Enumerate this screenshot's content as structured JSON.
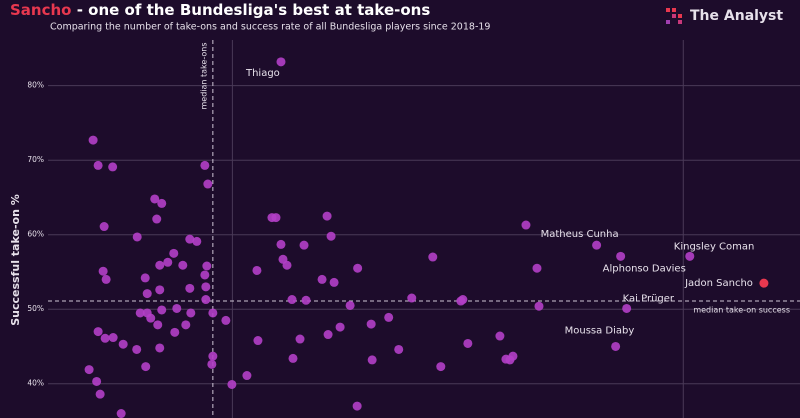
{
  "chart_data": {
    "type": "scatter",
    "title_highlight": "Sancho",
    "title": " - one of the Bundesliga's best at take-ons",
    "subtitle": "Comparing the number of take-ons and success rate of all Bundesliga players since 2018-19",
    "brand": "The Analyst",
    "y_label": "Successful take-on %",
    "xlim": [
      0,
      153.3
    ],
    "ylim": [
      35.4,
      91.5
    ],
    "x_gridlines": [
      40,
      130
    ],
    "yticks": [
      {
        "value": 40,
        "label": "40%"
      },
      {
        "value": 50,
        "label": "50%"
      },
      {
        "value": 60,
        "label": "60%"
      },
      {
        "value": 70,
        "label": "70%"
      },
      {
        "value": 80,
        "label": "80%"
      }
    ],
    "median_x": 36.1,
    "median_x_label": "median take-ons",
    "median_y": 51.1,
    "median_y_label": "median take-on success",
    "color": "#b43fc8",
    "x": [
      49.7,
      112.7,
      117.5,
      131.3,
      118.7,
      116.5,
      12.2,
      13.2,
      16.1,
      14.4,
      34.5,
      35.1,
      24.5,
      25.9,
      24.9,
      21.0,
      31.5,
      32.9,
      28.3,
      14.2,
      14.8,
      25.5,
      27.1,
      30.1,
      22.6,
      25.5,
      31.5,
      34.5,
      34.9,
      34.7,
      34.7,
      23.0,
      21.6,
      23.0,
      23.7,
      25.9,
      28.9,
      31.7,
      36.1,
      38.7,
      13.2,
      14.6,
      16.2,
      18.2,
      20.9,
      25.1,
      25.5,
      28.5,
      30.7,
      36.1,
      35.9,
      22.7,
      11.4,
      12.9,
      13.6,
      17.8,
      39.9,
      42.9,
      47.9,
      48.7,
      49.7,
      50.1,
      50.9,
      44.9,
      58.9,
      59.7,
      54.3,
      51.9,
      54.7,
      57.9,
      60.3,
      65.0,
      63.5,
      45.1,
      52.1,
      53.5,
      59.1,
      61.5,
      67.7,
      71.2,
      67.9,
      73.2,
      75.8,
      80.0,
      85.6,
      86.0,
      81.6,
      87.0,
      93.4,
      96.0,
      94.6,
      95.4,
      64.9,
      98.6,
      100.8,
      101.2
    ],
    "y": [
      83.2,
      58.6,
      57.1,
      57.1,
      50.1,
      45.0,
      72.7,
      69.3,
      69.1,
      61.1,
      69.3,
      66.8,
      64.8,
      64.2,
      62.1,
      59.7,
      59.4,
      59.1,
      57.5,
      55.1,
      54.0,
      55.9,
      56.3,
      55.9,
      54.2,
      52.6,
      52.8,
      54.6,
      55.8,
      53.0,
      51.3,
      52.1,
      49.5,
      49.5,
      48.8,
      49.9,
      50.1,
      49.5,
      49.5,
      48.5,
      47.0,
      46.1,
      46.2,
      45.3,
      44.6,
      47.9,
      44.8,
      46.9,
      47.9,
      43.7,
      42.6,
      42.3,
      41.9,
      40.3,
      38.6,
      36.0,
      39.9,
      41.1,
      62.3,
      62.3,
      58.7,
      56.7,
      55.9,
      55.2,
      62.5,
      59.8,
      58.6,
      51.3,
      51.2,
      54.0,
      53.6,
      55.5,
      50.5,
      45.8,
      43.4,
      46.0,
      46.6,
      47.6,
      48.0,
      48.9,
      43.2,
      44.6,
      51.5,
      57.0,
      51.1,
      51.3,
      42.3,
      45.4,
      46.4,
      43.7,
      43.3,
      43.2,
      37.0,
      61.3,
      55.5,
      50.4
    ],
    "point_labels": [
      "Thiago",
      "Matheus Cunha",
      "Alphonso Davies",
      "Kingsley Coman",
      "Kai Prüger",
      "Moussa Diaby",
      null,
      null,
      null,
      null,
      null,
      null,
      null,
      null,
      null,
      null,
      null,
      null,
      null,
      null,
      null,
      null,
      null,
      null,
      null,
      null,
      null,
      null,
      null,
      null,
      null,
      null,
      null,
      null,
      null,
      null,
      null,
      null,
      null,
      null,
      null,
      null,
      null,
      null,
      null,
      null,
      null,
      null,
      null,
      null,
      null,
      null,
      null,
      null,
      null,
      null,
      null,
      null,
      null,
      null,
      null,
      null,
      null,
      null,
      null,
      null,
      null,
      null,
      null,
      null,
      null,
      null,
      null,
      null,
      null,
      null,
      null,
      null,
      null,
      null,
      null,
      null,
      null,
      null,
      null,
      null,
      null,
      null,
      null,
      null,
      null,
      null,
      null,
      null,
      null,
      null
    ],
    "highlight": {
      "name": "Jadon Sancho",
      "x": 146.1,
      "y": 53.5,
      "color": "#e8384f"
    }
  }
}
